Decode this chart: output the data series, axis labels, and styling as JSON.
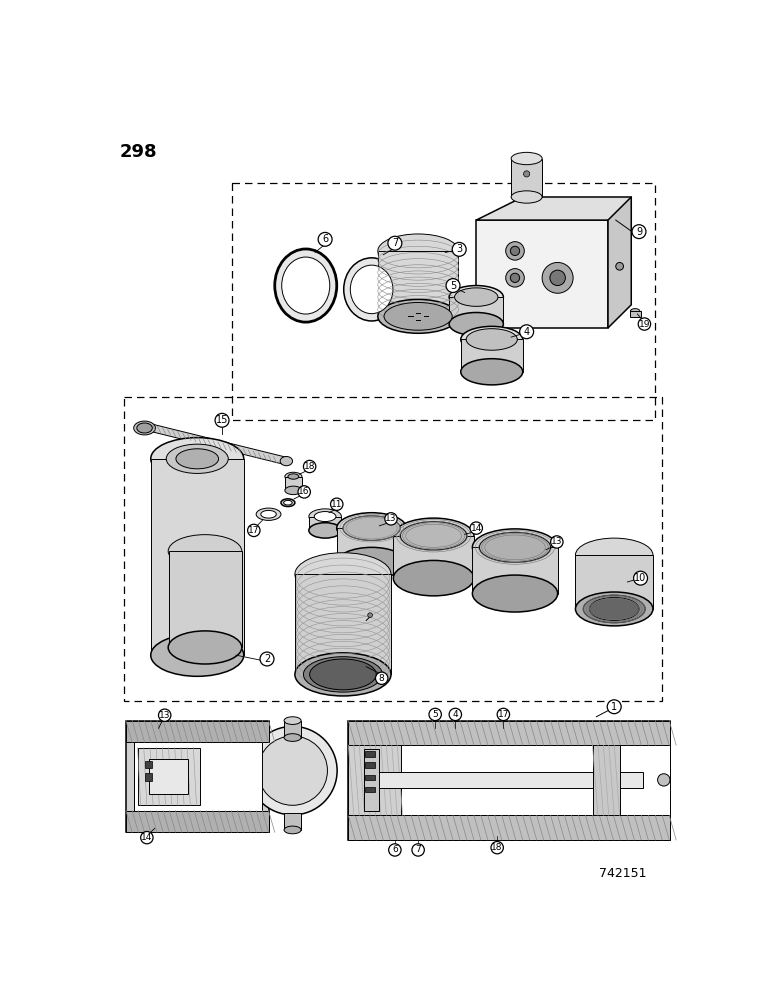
{
  "page_number": "298",
  "figure_number": "742151",
  "bg_color": "#ffffff",
  "line_color": "#000000",
  "figsize": [
    7.72,
    10.0
  ],
  "dpi": 100,
  "lw_thin": 0.7,
  "lw_med": 1.1,
  "lw_thick": 2.0,
  "gray_light": "#e8e8e8",
  "gray_mid": "#c0c0c0",
  "gray_dark": "#888888",
  "hatch_color": "#999999"
}
